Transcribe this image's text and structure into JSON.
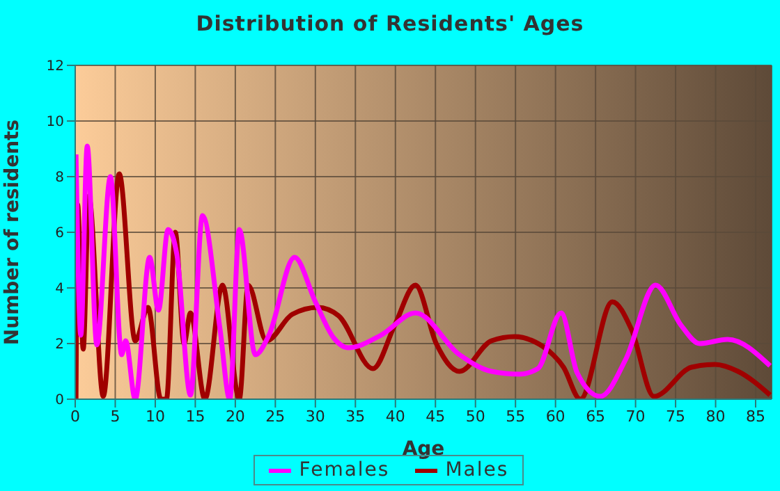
{
  "chart_data": {
    "type": "line",
    "title": "Distribution of Residents' Ages",
    "xlabel": "Age",
    "ylabel": "Number of residents",
    "xlim": [
      0,
      87
    ],
    "xticks": [
      0,
      5,
      10,
      15,
      20,
      25,
      30,
      35,
      40,
      45,
      50,
      55,
      60,
      65,
      70,
      75,
      80,
      85
    ],
    "ylim": [
      0,
      12
    ],
    "yticks": [
      0,
      2,
      4,
      6,
      8,
      10,
      12
    ],
    "grid": true,
    "legend": "bottom",
    "marker": "none",
    "line_style": "solid",
    "series": [
      {
        "name": "Males",
        "color": "#a00000",
        "x": [
          0.1,
          0.3,
          1.0,
          1.7,
          3.5,
          5.5,
          7.5,
          9.1,
          10.7,
          11.4,
          12.5,
          13.6,
          14.4,
          16.2,
          18.4,
          20.5,
          21.6,
          23.9,
          27.1,
          30.3,
          32.9,
          37.2,
          39.9,
          42.5,
          45.1,
          48.0,
          52.0,
          54.9,
          57.5,
          58.4,
          61.0,
          63.1,
          67.1,
          69.5,
          72.3,
          77.0,
          79.9,
          82.8,
          86.8
        ],
        "values": [
          0,
          7.0,
          1.8,
          7.3,
          0.1,
          8.1,
          2.1,
          3.3,
          0,
          0,
          6.0,
          2.0,
          3.1,
          0,
          4.1,
          0,
          4.1,
          2.1,
          3.05,
          3.3,
          3.0,
          1.1,
          2.65,
          4.1,
          2.0,
          1.0,
          2.1,
          2.25,
          2.05,
          1.9,
          1.15,
          0,
          3.5,
          2.5,
          0.1,
          1.15,
          1.25,
          1.0,
          0.15
        ]
      },
      {
        "name": "Females",
        "color": "#ff00ff",
        "x": [
          0.1,
          0.7,
          1.5,
          2.7,
          4.4,
          5.8,
          6.3,
          7.5,
          9.3,
          10.4,
          11.6,
          12.7,
          14.4,
          15.9,
          18.1,
          19.3,
          20.5,
          22.5,
          24.2,
          27.4,
          30.0,
          32.3,
          34.1,
          38.2,
          42.5,
          48.0,
          52.0,
          55.5,
          57.8,
          60.7,
          62.7,
          65.6,
          68.8,
          72.5,
          75.7,
          78.0,
          81.5,
          86.8
        ],
        "values": [
          8.8,
          2.3,
          9.1,
          1.95,
          8.0,
          1.6,
          2.1,
          0,
          5.1,
          3.2,
          6.1,
          5.2,
          0.15,
          6.6,
          2.5,
          0,
          6.1,
          1.6,
          2.3,
          5.1,
          3.5,
          2.2,
          1.85,
          2.3,
          3.1,
          1.6,
          1.0,
          0.9,
          1.1,
          3.1,
          0.95,
          0.1,
          1.45,
          4.1,
          2.65,
          2.0,
          2.15,
          1.2
        ]
      }
    ]
  }
}
